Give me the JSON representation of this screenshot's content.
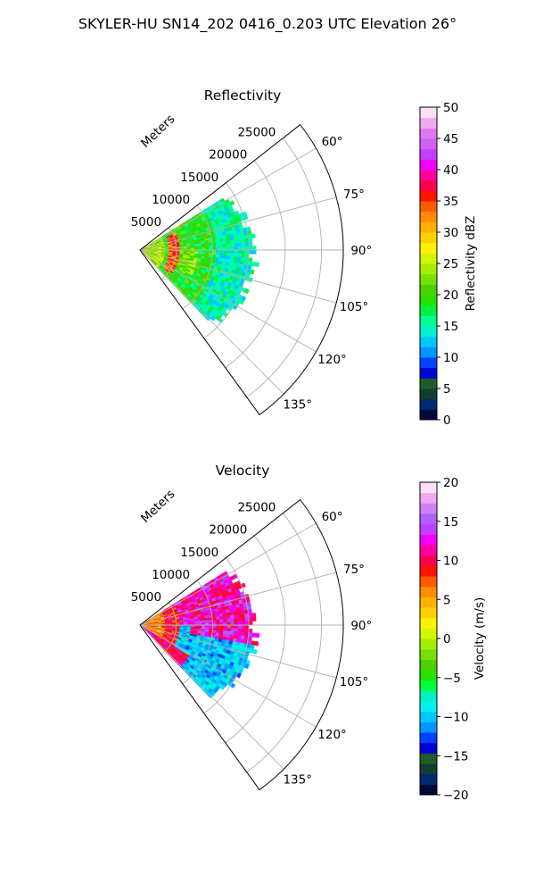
{
  "figure_title": "SKYLER-HU  SN14_202  0416_0.203 UTC Elevation 26°",
  "chart_data": [
    {
      "type": "heatmap",
      "subtype": "polar sector (PPI)",
      "title": "Reflectivity",
      "range_label": "Meters",
      "range_ticks": [
        5000,
        10000,
        15000,
        20000,
        25000
      ],
      "range_tick_labels": [
        "5000",
        "10000",
        "15000",
        "20000",
        "25000"
      ],
      "rlim": [
        0,
        28000
      ],
      "azimuth_ticks": [
        60,
        75,
        90,
        105,
        120,
        135
      ],
      "azimuth_tick_labels": [
        "60°",
        "75°",
        "90°",
        "105°",
        "120°",
        "135°"
      ],
      "azimuth_range_deg": [
        52,
        144
      ],
      "data_extent": {
        "azimuth_deg": [
          58,
          136
        ],
        "max_range_m": [
          12000,
          15500
        ]
      },
      "grid": true,
      "colorbar": {
        "label": "Reflectivity dBZ",
        "range": [
          0,
          50
        ],
        "ticks": [
          0,
          5,
          10,
          15,
          20,
          25,
          30,
          35,
          40,
          45,
          50
        ],
        "tick_labels": [
          "0",
          "5",
          "10",
          "15",
          "20",
          "25",
          "30",
          "35",
          "40",
          "45",
          "50"
        ],
        "colors": [
          "#00083a",
          "#002a6e",
          "#133d2f",
          "#1c5d28",
          "#0004d2",
          "#0042ff",
          "#0096ff",
          "#00c8ff",
          "#00f0d0",
          "#00ff90",
          "#00f040",
          "#26e000",
          "#4cd000",
          "#78e000",
          "#a6ee00",
          "#d4f400",
          "#fff000",
          "#ffd000",
          "#ffb000",
          "#ff8c00",
          "#ff5a00",
          "#ff1400",
          "#ff0050",
          "#ff00a0",
          "#f000ff",
          "#c040ff",
          "#d060f0",
          "#e078f0",
          "#f0a8f0",
          "#fce0f8"
        ]
      },
      "values_dbz_note": "mostly 15-25 dBZ; 25-35 near radar; 35-40 band at ~4000 m"
    },
    {
      "type": "heatmap",
      "subtype": "polar sector (PPI)",
      "title": "Velocity",
      "range_label": "Meters",
      "range_ticks": [
        5000,
        10000,
        15000,
        20000,
        25000
      ],
      "range_tick_labels": [
        "5000",
        "10000",
        "15000",
        "20000",
        "25000"
      ],
      "rlim": [
        0,
        28000
      ],
      "azimuth_ticks": [
        60,
        75,
        90,
        105,
        120,
        135
      ],
      "azimuth_tick_labels": [
        "60°",
        "75°",
        "90°",
        "105°",
        "120°",
        "135°"
      ],
      "azimuth_range_deg": [
        52,
        144
      ],
      "data_extent": {
        "azimuth_deg": [
          58,
          136
        ],
        "max_range_m": [
          12000,
          15500
        ]
      },
      "grid": true,
      "colorbar": {
        "label": "Velocity (m/s)",
        "range": [
          -20,
          20
        ],
        "ticks": [
          -20,
          -15,
          -10,
          -5,
          0,
          5,
          10,
          15,
          20
        ],
        "tick_labels": [
          "−20",
          "−15",
          "−10",
          "−5",
          "0",
          "5",
          "10",
          "15",
          "20"
        ],
        "colors": [
          "#00083a",
          "#002a6e",
          "#133d2f",
          "#1c5d28",
          "#0004d2",
          "#0042ff",
          "#0096ff",
          "#00c8ff",
          "#00f0f0",
          "#00f0c0",
          "#00ff40",
          "#26e000",
          "#4cd000",
          "#78e000",
          "#a6ee00",
          "#d4f400",
          "#fff000",
          "#ffd000",
          "#ffb000",
          "#ff8c00",
          "#ff5a00",
          "#ff1400",
          "#ff0050",
          "#ff00a0",
          "#f000ff",
          "#c040ff",
          "#b060ff",
          "#d080f0",
          "#f0a8f0",
          "#fce0f8"
        ]
      },
      "values_ms_note": "+10 to +15 in outer/north region; -10 to -12 in south-east region; +5 to +10 near radar"
    }
  ]
}
